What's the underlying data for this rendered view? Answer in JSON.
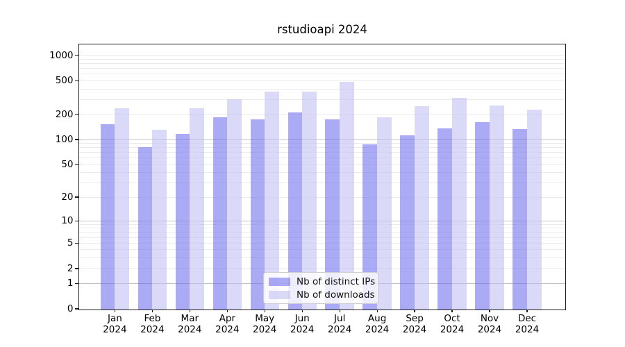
{
  "chart_data": {
    "type": "bar",
    "title": "rstudioapi 2024",
    "categories": [
      "Jan",
      "Feb",
      "Mar",
      "Apr",
      "May",
      "Jun",
      "Jul",
      "Aug",
      "Sep",
      "Oct",
      "Nov",
      "Dec"
    ],
    "x_year_label": "2024",
    "series": [
      {
        "name": "Nb of distinct IPs",
        "color": "rgba(100,100,237,0.55)",
        "color_hex_over_white": "#aaaaf5",
        "values": [
          152,
          81,
          117,
          183,
          175,
          210,
          175,
          87,
          112,
          135,
          160,
          133
        ]
      },
      {
        "name": "Nb of downloads",
        "color": "rgba(188,188,242,0.55)",
        "color_hex_over_white": "#dadaf8",
        "values": [
          235,
          131,
          235,
          304,
          372,
          372,
          484,
          184,
          248,
          314,
          253,
          228
        ]
      }
    ],
    "y_axis": {
      "scale": "log1p",
      "ticks": [
        0,
        1,
        2,
        5,
        10,
        20,
        50,
        100,
        200,
        500,
        1000
      ],
      "major_gridline_values": [
        1,
        10,
        100
      ],
      "minor_gridline_values": [
        3,
        4,
        6,
        7,
        8,
        9,
        30,
        40,
        60,
        70,
        80,
        90,
        300,
        400,
        600,
        700,
        800,
        900
      ],
      "range": [
        0,
        1400
      ],
      "grid": "on"
    },
    "legend": {
      "position": "lower-center",
      "entries": [
        "Nb of distinct IPs",
        "Nb of downloads"
      ]
    },
    "style_colors": {
      "minor_gridline": "#ebebeb",
      "major_gridline": "#c3c3c3",
      "spine": "#1a1a1a",
      "background": "#ffffff"
    }
  }
}
